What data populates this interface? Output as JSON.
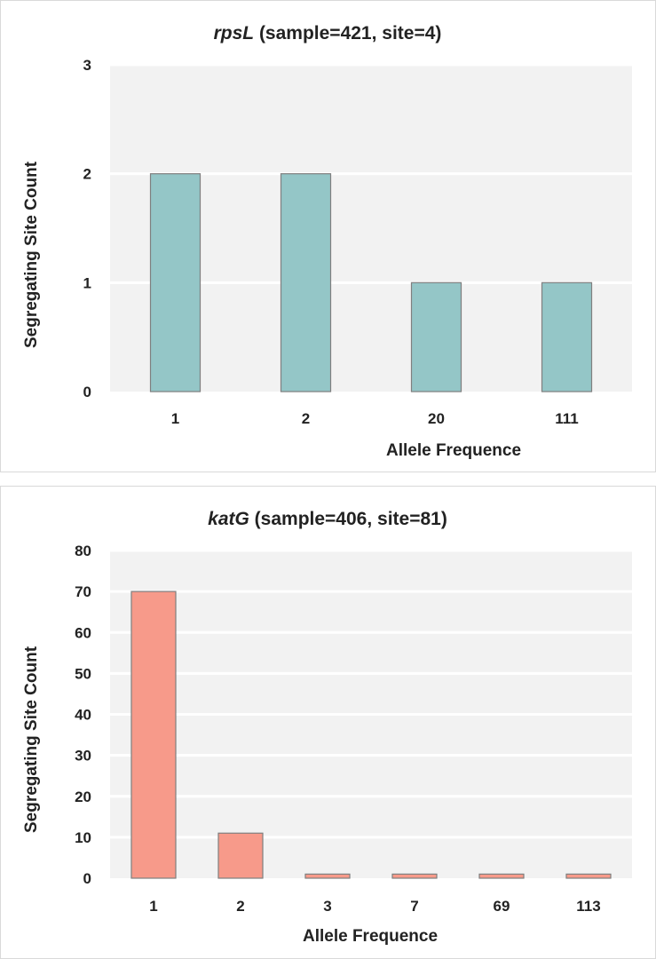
{
  "chart_data": [
    {
      "type": "bar",
      "title_gene": "rpsL",
      "title_rest": " (sample=421, site=4)",
      "categories": [
        "1",
        "2",
        "20",
        "111"
      ],
      "values": [
        2,
        2,
        1,
        1
      ],
      "ylim": [
        0,
        3
      ],
      "yticks": [
        "0",
        "1",
        "2",
        "3"
      ],
      "xlabel": "Allele Frequence",
      "ylabel": "Segregating Site Count",
      "bar_color": "#94c6c7",
      "plot_bg": "#f2f2f2",
      "grid": true,
      "legend": "none"
    },
    {
      "type": "bar",
      "title_gene": "katG",
      "title_rest": " (sample=406, site=81)",
      "categories": [
        "1",
        "2",
        "3",
        "7",
        "69",
        "113"
      ],
      "values": [
        70,
        11,
        1,
        1,
        1,
        1
      ],
      "ylim": [
        0,
        80
      ],
      "yticks": [
        "0",
        "10",
        "20",
        "30",
        "40",
        "50",
        "60",
        "70",
        "80"
      ],
      "xlabel": "Allele Frequence",
      "ylabel": "Segregating Site Count",
      "bar_color": "#f79a8a",
      "plot_bg": "#f2f2f2",
      "grid": true,
      "legend": "none"
    }
  ]
}
